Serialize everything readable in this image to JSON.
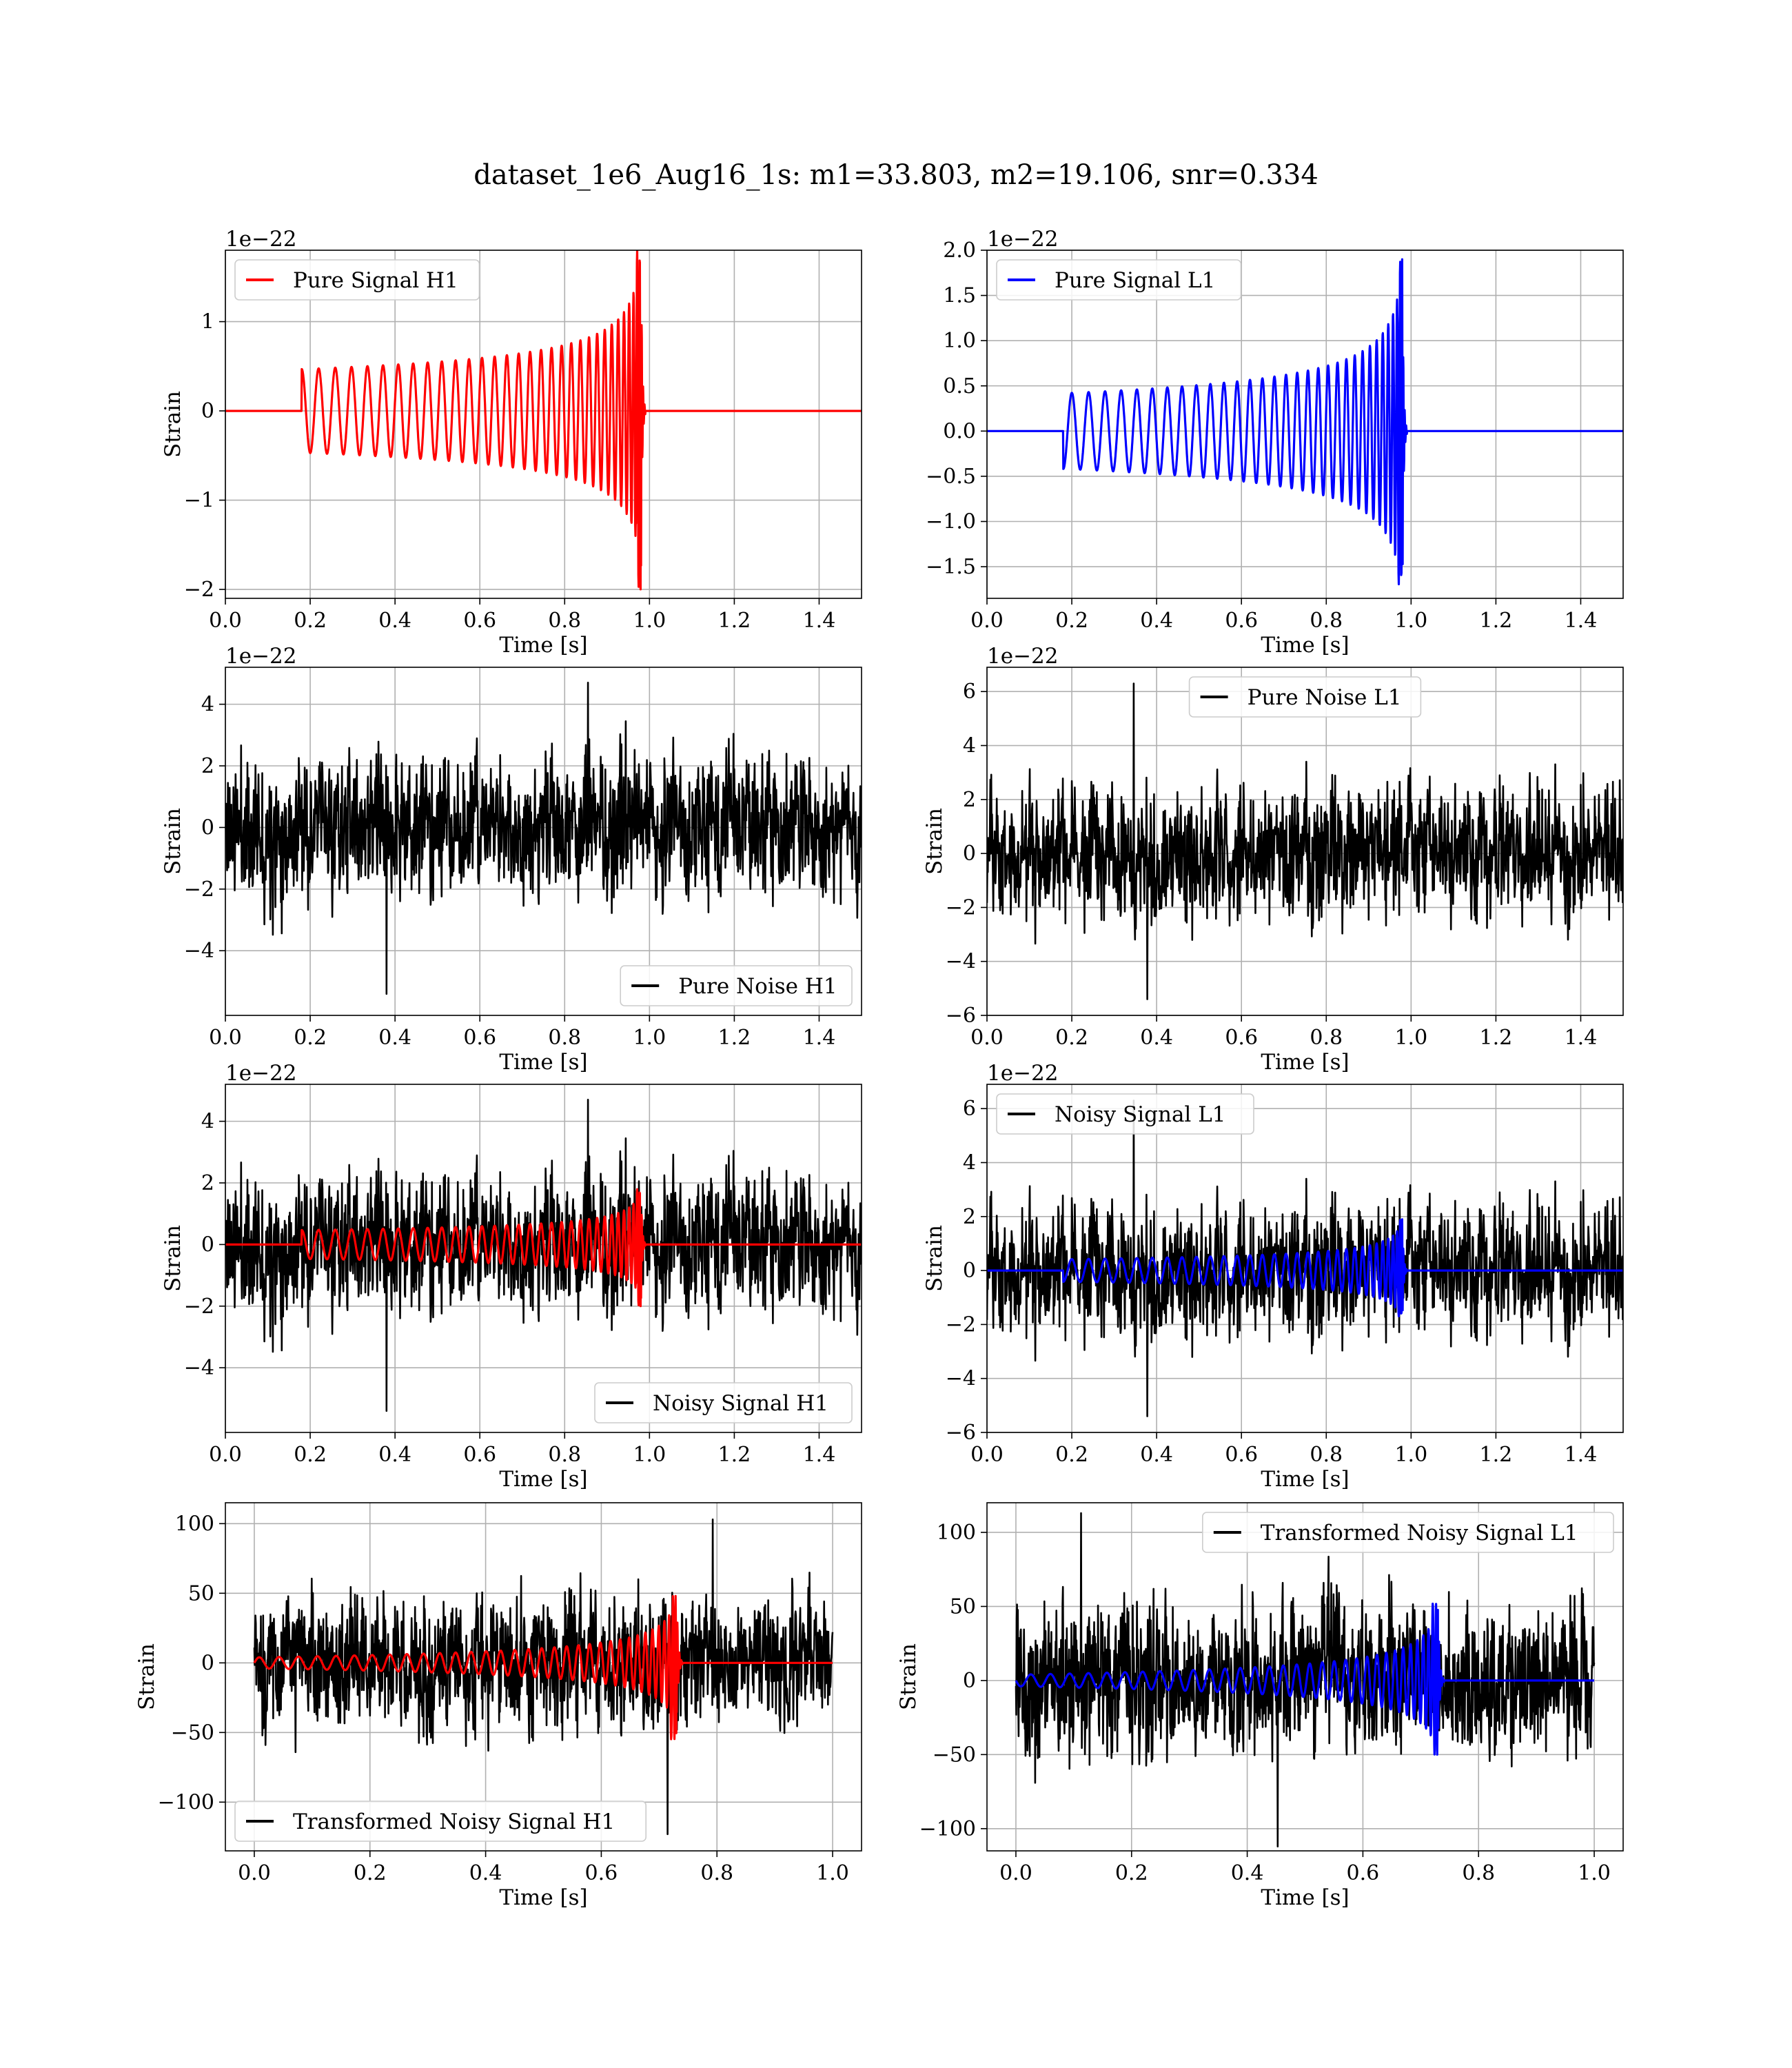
{
  "title": "dataset_1e6_Aug16_1s: m1=33.803, m2=19.106, snr=0.334",
  "colors": {
    "h1_signal": "#ff0000",
    "l1_signal": "#0000ff",
    "noise": "#000000",
    "grid": "#b0b0b0"
  },
  "chart_data": [
    {
      "type": "line",
      "id": "pure-signal-h1",
      "xlabel": "Time [s]",
      "ylabel": "Strain",
      "offset_label": "1e−22",
      "xlim": [
        0,
        1.5
      ],
      "ylim": [
        -2.1,
        1.8
      ],
      "xticks": [
        0.0,
        0.2,
        0.4,
        0.6,
        0.8,
        1.0,
        1.2,
        1.4
      ],
      "xtick_labels": [
        "0.0",
        "0.2",
        "0.4",
        "0.6",
        "0.8",
        "1.0",
        "1.2",
        "1.4"
      ],
      "yticks": [
        -2,
        -1,
        0,
        1
      ],
      "ytick_labels": [
        "−2",
        "−1",
        "0",
        "1"
      ],
      "grid": true,
      "legend_position": "upper left",
      "series": [
        {
          "name": "Pure Signal H1",
          "color": "#ff0000",
          "kind": "chirp",
          "start": 0.18,
          "merger": 0.98,
          "ring": 0.99,
          "end": 1.5,
          "amp_start": 0.47,
          "amp_merge": 1.8,
          "amp_min": -2.0,
          "cycles": 32,
          "initial_phase": 1.57
        }
      ]
    },
    {
      "type": "line",
      "id": "pure-signal-l1",
      "xlabel": "Time [s]",
      "ylabel": "",
      "offset_label": "1e−22",
      "xlim": [
        0,
        1.5
      ],
      "ylim": [
        -1.85,
        2.0
      ],
      "xticks": [
        0.0,
        0.2,
        0.4,
        0.6,
        0.8,
        1.0,
        1.2,
        1.4
      ],
      "xtick_labels": [
        "0.0",
        "0.2",
        "0.4",
        "0.6",
        "0.8",
        "1.0",
        "1.2",
        "1.4"
      ],
      "yticks": [
        -1.5,
        -1.0,
        -0.5,
        0.0,
        0.5,
        1.0,
        1.5,
        2.0
      ],
      "ytick_labels": [
        "−1.5",
        "−1.0",
        "−0.5",
        "0.0",
        "0.5",
        "1.0",
        "1.5",
        "2.0"
      ],
      "grid": true,
      "legend_position": "upper left",
      "series": [
        {
          "name": "Pure Signal L1",
          "color": "#0000ff",
          "kind": "chirp",
          "start": 0.18,
          "merger": 0.98,
          "ring": 0.99,
          "end": 1.5,
          "amp_start": 0.42,
          "amp_merge": 1.9,
          "amp_min": -1.7,
          "cycles": 32,
          "initial_phase": -1.57
        }
      ]
    },
    {
      "type": "line",
      "id": "pure-noise-h1",
      "xlabel": "Time [s]",
      "ylabel": "Strain",
      "offset_label": "1e−22",
      "xlim": [
        0,
        1.5
      ],
      "ylim": [
        -6.1,
        5.2
      ],
      "xticks": [
        0.0,
        0.2,
        0.4,
        0.6,
        0.8,
        1.0,
        1.2,
        1.4
      ],
      "xtick_labels": [
        "0.0",
        "0.2",
        "0.4",
        "0.6",
        "0.8",
        "1.0",
        "1.2",
        "1.4"
      ],
      "yticks": [
        -4,
        -2,
        0,
        2,
        4
      ],
      "ytick_labels": [
        "−4",
        "−2",
        "0",
        "2",
        "4"
      ],
      "grid": true,
      "legend_position": "lower right",
      "series": [
        {
          "name": "Pure Noise H1",
          "color": "#000000",
          "kind": "noise",
          "start": 0,
          "end": 1.5,
          "sigma": 1.45,
          "seed": 11,
          "peak_max": 4.7,
          "peak_min": -5.4
        }
      ]
    },
    {
      "type": "line",
      "id": "pure-noise-l1",
      "xlabel": "Time [s]",
      "ylabel": "Strain",
      "offset_label": "1e−22",
      "xlim": [
        0,
        1.5
      ],
      "ylim": [
        -6.0,
        6.9
      ],
      "xticks": [
        0.0,
        0.2,
        0.4,
        0.6,
        0.8,
        1.0,
        1.2,
        1.4
      ],
      "xtick_labels": [
        "0.0",
        "0.2",
        "0.4",
        "0.6",
        "0.8",
        "1.0",
        "1.2",
        "1.4"
      ],
      "yticks": [
        -6,
        -4,
        -2,
        0,
        2,
        4,
        6
      ],
      "ytick_labels": [
        "−6",
        "−4",
        "−2",
        "0",
        "2",
        "4",
        "6"
      ],
      "grid": true,
      "legend_position": "upper center",
      "series": [
        {
          "name": "Pure Noise L1",
          "color": "#000000",
          "kind": "noise",
          "start": 0,
          "end": 1.5,
          "sigma": 1.55,
          "seed": 23,
          "peak_max": 6.3,
          "peak_min": -5.4
        }
      ]
    },
    {
      "type": "line",
      "id": "noisy-signal-h1",
      "xlabel": "Time [s]",
      "ylabel": "Strain",
      "offset_label": "1e−22",
      "xlim": [
        0,
        1.5
      ],
      "ylim": [
        -6.1,
        5.2
      ],
      "xticks": [
        0.0,
        0.2,
        0.4,
        0.6,
        0.8,
        1.0,
        1.2,
        1.4
      ],
      "xtick_labels": [
        "0.0",
        "0.2",
        "0.4",
        "0.6",
        "0.8",
        "1.0",
        "1.2",
        "1.4"
      ],
      "yticks": [
        -4,
        -2,
        0,
        2,
        4
      ],
      "ytick_labels": [
        "−4",
        "−2",
        "0",
        "2",
        "4"
      ],
      "grid": true,
      "legend_position": "lower right",
      "series": [
        {
          "name": "Noisy Signal H1",
          "color": "#000000",
          "kind": "noise",
          "start": 0,
          "end": 1.5,
          "sigma": 1.45,
          "seed": 11,
          "peak_max": 4.7,
          "peak_min": -5.4
        },
        {
          "name": "",
          "color": "#ff0000",
          "kind": "chirp",
          "start": 0.18,
          "merger": 0.98,
          "ring": 0.99,
          "end": 1.5,
          "amp_start": 0.47,
          "amp_merge": 1.8,
          "amp_min": -2.0,
          "cycles": 32,
          "initial_phase": 1.57
        }
      ]
    },
    {
      "type": "line",
      "id": "noisy-signal-l1",
      "xlabel": "Time [s]",
      "ylabel": "Strain",
      "offset_label": "1e−22",
      "xlim": [
        0,
        1.5
      ],
      "ylim": [
        -6.0,
        6.9
      ],
      "xticks": [
        0.0,
        0.2,
        0.4,
        0.6,
        0.8,
        1.0,
        1.2,
        1.4
      ],
      "xtick_labels": [
        "0.0",
        "0.2",
        "0.4",
        "0.6",
        "0.8",
        "1.0",
        "1.2",
        "1.4"
      ],
      "yticks": [
        -6,
        -4,
        -2,
        0,
        2,
        4,
        6
      ],
      "ytick_labels": [
        "−6",
        "−4",
        "−2",
        "0",
        "2",
        "4",
        "6"
      ],
      "grid": true,
      "legend_position": "upper left",
      "series": [
        {
          "name": "Noisy Signal L1",
          "color": "#000000",
          "kind": "noise",
          "start": 0,
          "end": 1.5,
          "sigma": 1.55,
          "seed": 23,
          "peak_max": 6.3,
          "peak_min": -5.4
        },
        {
          "name": "",
          "color": "#0000ff",
          "kind": "chirp",
          "start": 0.18,
          "merger": 0.98,
          "ring": 0.99,
          "end": 1.5,
          "amp_start": 0.42,
          "amp_merge": 1.9,
          "amp_min": -1.7,
          "cycles": 32,
          "initial_phase": -1.57
        }
      ]
    },
    {
      "type": "line",
      "id": "transformed-noisy-signal-h1",
      "xlabel": "Time [s]",
      "ylabel": "Strain",
      "offset_label": "",
      "xlim": [
        -0.05,
        1.05
      ],
      "ylim": [
        -135,
        115
      ],
      "xticks": [
        0.0,
        0.2,
        0.4,
        0.6,
        0.8,
        1.0
      ],
      "xtick_labels": [
        "0.0",
        "0.2",
        "0.4",
        "0.6",
        "0.8",
        "1.0"
      ],
      "yticks": [
        -100,
        -50,
        0,
        50,
        100
      ],
      "ytick_labels": [
        "−100",
        "−50",
        "0",
        "50",
        "100"
      ],
      "grid": true,
      "legend_position": "lower left",
      "series": [
        {
          "name": "Transformed Noisy Signal H1",
          "color": "#000000",
          "kind": "noise",
          "start": 0,
          "end": 1.0,
          "sigma": 30,
          "seed": 37,
          "peak_max": 103,
          "peak_min": -123
        },
        {
          "name": "",
          "color": "#ff0000",
          "kind": "chirp",
          "start": 0.0,
          "merger": 0.73,
          "ring": 0.74,
          "end": 1.0,
          "amp_start": 4,
          "amp_merge": 48,
          "amp_min": -55,
          "cycles": 34,
          "initial_phase": 0.0
        }
      ]
    },
    {
      "type": "line",
      "id": "transformed-noisy-signal-l1",
      "xlabel": "Time [s]",
      "ylabel": "Strain",
      "offset_label": "",
      "xlim": [
        -0.05,
        1.05
      ],
      "ylim": [
        -115,
        120
      ],
      "xticks": [
        0.0,
        0.2,
        0.4,
        0.6,
        0.8,
        1.0
      ],
      "xtick_labels": [
        "0.0",
        "0.2",
        "0.4",
        "0.6",
        "0.8",
        "1.0"
      ],
      "yticks": [
        -100,
        -50,
        0,
        50,
        100
      ],
      "ytick_labels": [
        "−100",
        "−50",
        "0",
        "50",
        "100"
      ],
      "grid": true,
      "legend_position": "upper right",
      "series": [
        {
          "name": "Transformed Noisy Signal L1",
          "color": "#000000",
          "kind": "noise",
          "start": 0,
          "end": 1.0,
          "sigma": 32,
          "seed": 53,
          "peak_max": 113,
          "peak_min": -112
        },
        {
          "name": "",
          "color": "#0000ff",
          "kind": "chirp",
          "start": 0.0,
          "merger": 0.73,
          "ring": 0.74,
          "end": 1.0,
          "amp_start": 4,
          "amp_merge": 52,
          "amp_min": -50,
          "cycles": 34,
          "initial_phase": 3.14
        }
      ]
    }
  ]
}
